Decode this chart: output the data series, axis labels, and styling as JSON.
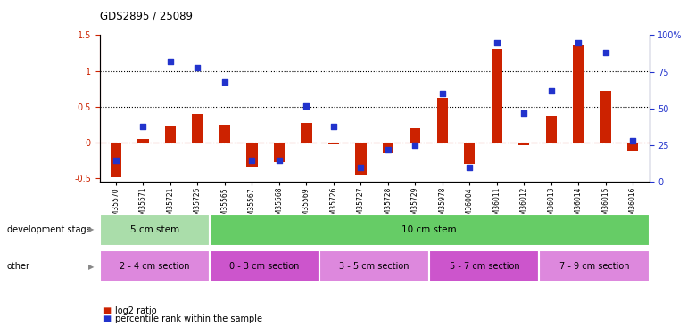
{
  "title": "GDS2895 / 25089",
  "categories": [
    "GSM35570",
    "GSM35571",
    "GSM35721",
    "GSM35725",
    "GSM35565",
    "GSM35567",
    "GSM35568",
    "GSM35569",
    "GSM35726",
    "GSM35727",
    "GSM35728",
    "GSM35729",
    "GSM35978",
    "GSM36004",
    "GSM36011",
    "GSM36012",
    "GSM36013",
    "GSM36014",
    "GSM36015",
    "GSM36016"
  ],
  "log2_ratio": [
    -0.48,
    0.05,
    0.22,
    0.4,
    0.25,
    -0.35,
    -0.27,
    0.28,
    -0.02,
    -0.45,
    -0.15,
    0.2,
    0.62,
    -0.3,
    1.3,
    -0.03,
    0.38,
    1.35,
    0.72,
    -0.12
  ],
  "percentile_pct": [
    15,
    38,
    82,
    78,
    68,
    15,
    15,
    52,
    38,
    10,
    22,
    25,
    60,
    10,
    95,
    47,
    62,
    95,
    88,
    28
  ],
  "bar_color": "#cc2200",
  "dot_color": "#2233cc",
  "ylim_left": [
    -0.55,
    1.5
  ],
  "ylim_right": [
    0,
    100
  ],
  "left_yticks": [
    -0.5,
    0.0,
    0.5,
    1.0,
    1.5
  ],
  "left_yticklabels": [
    "-0.5",
    "0",
    "0.5",
    "1",
    "1.5"
  ],
  "right_yticks": [
    0,
    25,
    50,
    75,
    100
  ],
  "right_yticklabels": [
    "0",
    "25",
    "50",
    "75",
    "100%"
  ],
  "dotted_lines": [
    0.5,
    1.0
  ],
  "zero_line_color": "#cc2200",
  "dev_stage_groups": [
    {
      "label": "5 cm stem",
      "start": 0,
      "end": 4,
      "color": "#aaddaa"
    },
    {
      "label": "10 cm stem",
      "start": 4,
      "end": 20,
      "color": "#66cc66"
    }
  ],
  "other_groups": [
    {
      "label": "2 - 4 cm section",
      "start": 0,
      "end": 4,
      "color": "#dd88dd"
    },
    {
      "label": "0 - 3 cm section",
      "start": 4,
      "end": 8,
      "color": "#cc55cc"
    },
    {
      "label": "3 - 5 cm section",
      "start": 8,
      "end": 12,
      "color": "#dd88dd"
    },
    {
      "label": "5 - 7 cm section",
      "start": 12,
      "end": 16,
      "color": "#cc55cc"
    },
    {
      "label": "7 - 9 cm section",
      "start": 16,
      "end": 20,
      "color": "#dd88dd"
    }
  ],
  "legend_items": [
    {
      "label": "log2 ratio",
      "color": "#cc2200"
    },
    {
      "label": "percentile rank within the sample",
      "color": "#2233cc"
    }
  ],
  "label_dev_stage": "development stage",
  "label_other": "other",
  "fig_width": 7.7,
  "fig_height": 3.75,
  "dpi": 100
}
